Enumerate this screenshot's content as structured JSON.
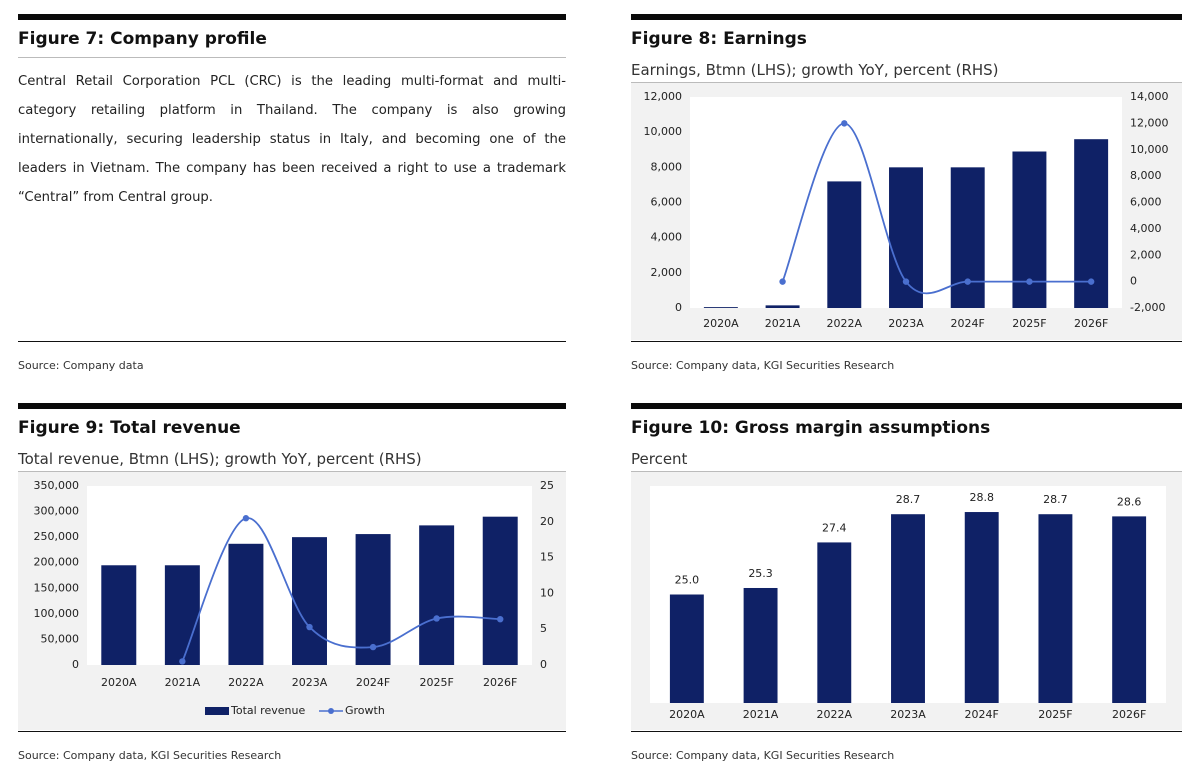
{
  "fig7": {
    "title": "Figure 7: Company profile",
    "body": "Central Retail Corporation PCL (CRC) is the leading multi-format and multi-category retailing platform in Thailand. The company is also growing internationally, securing leadership status in Italy, and becoming one of the leaders in Vietnam. The company has been received a right to use a trademark “Central” from Central group.",
    "source": "Source: Company data"
  },
  "fig8": {
    "title": "Figure 8: Earnings",
    "subtitle": "Earnings, Btmn (LHS); growth YoY, percent (RHS)",
    "source": "Source: Company data, KGI Securities Research"
  },
  "fig9": {
    "title": "Figure 9: Total revenue",
    "subtitle": "Total revenue, Btmn (LHS); growth YoY, percent (RHS)",
    "source": "Source: Company data, KGI Securities Research",
    "legend_bar": "Total revenue",
    "legend_line": "Growth"
  },
  "fig10": {
    "title": "Figure 10: Gross margin assumptions",
    "subtitle": "Percent",
    "source": "Source: Company data, KGI Securities Research"
  },
  "colors": {
    "bar": "#0f2166",
    "line": "#4a6fcf",
    "panel": "#f2f2f2"
  },
  "chart_data": [
    {
      "id": "earnings",
      "type": "bar",
      "title": "Earnings, Btmn (LHS); growth YoY, percent (RHS)",
      "categories": [
        "2020A",
        "2021A",
        "2022A",
        "2023A",
        "2024F",
        "2025F",
        "2026F"
      ],
      "ylim": [
        0,
        12000
      ],
      "yticks": [
        "12,000",
        "10,000",
        "8,000",
        "6,000",
        "4,000",
        "2,000",
        "0"
      ],
      "y2lim": [
        -2000,
        14000
      ],
      "y2ticks": [
        "14,000",
        "12,000",
        "10,000",
        "8,000",
        "6,000",
        "4,000",
        "2,000",
        "0",
        "-2,000"
      ],
      "series": [
        {
          "name": "Earnings",
          "axis": "left",
          "kind": "bar",
          "values": [
            50,
            150,
            7200,
            8000,
            8000,
            8900,
            9600
          ]
        },
        {
          "name": "Growth",
          "axis": "right",
          "kind": "line",
          "values": [
            null,
            0,
            12000,
            0,
            0,
            0,
            0
          ]
        }
      ]
    },
    {
      "id": "revenue",
      "type": "bar",
      "title": "Total revenue, Btmn (LHS); growth YoY, percent (RHS)",
      "categories": [
        "2020A",
        "2021A",
        "2022A",
        "2023A",
        "2024F",
        "2025F",
        "2026F"
      ],
      "ylim": [
        0,
        350000
      ],
      "yticks": [
        "350,000",
        "300,000",
        "250,000",
        "200,000",
        "150,000",
        "100,000",
        "50,000",
        "0"
      ],
      "y2lim": [
        0,
        25
      ],
      "y2ticks": [
        "25",
        "20",
        "15",
        "10",
        "5",
        "0"
      ],
      "series": [
        {
          "name": "Total revenue",
          "axis": "left",
          "kind": "bar",
          "values": [
            195000,
            195000,
            237000,
            250000,
            256000,
            273000,
            290000
          ]
        },
        {
          "name": "Growth",
          "axis": "right",
          "kind": "line",
          "values": [
            null,
            0.5,
            20.5,
            5.3,
            2.5,
            6.5,
            6.4
          ]
        }
      ],
      "legend": "bottom"
    },
    {
      "id": "gross_margin",
      "type": "bar",
      "title": "Percent",
      "categories": [
        "2020A",
        "2021A",
        "2022A",
        "2023A",
        "2024F",
        "2025F",
        "2026F"
      ],
      "ylim": [
        20,
        30
      ],
      "series": [
        {
          "name": "Gross margin",
          "kind": "bar",
          "values": [
            25.0,
            25.3,
            27.4,
            28.7,
            28.8,
            28.7,
            28.6
          ],
          "labels": [
            "25.0",
            "25.3",
            "27.4",
            "28.7",
            "28.8",
            "28.7",
            "28.6"
          ]
        }
      ]
    }
  ]
}
